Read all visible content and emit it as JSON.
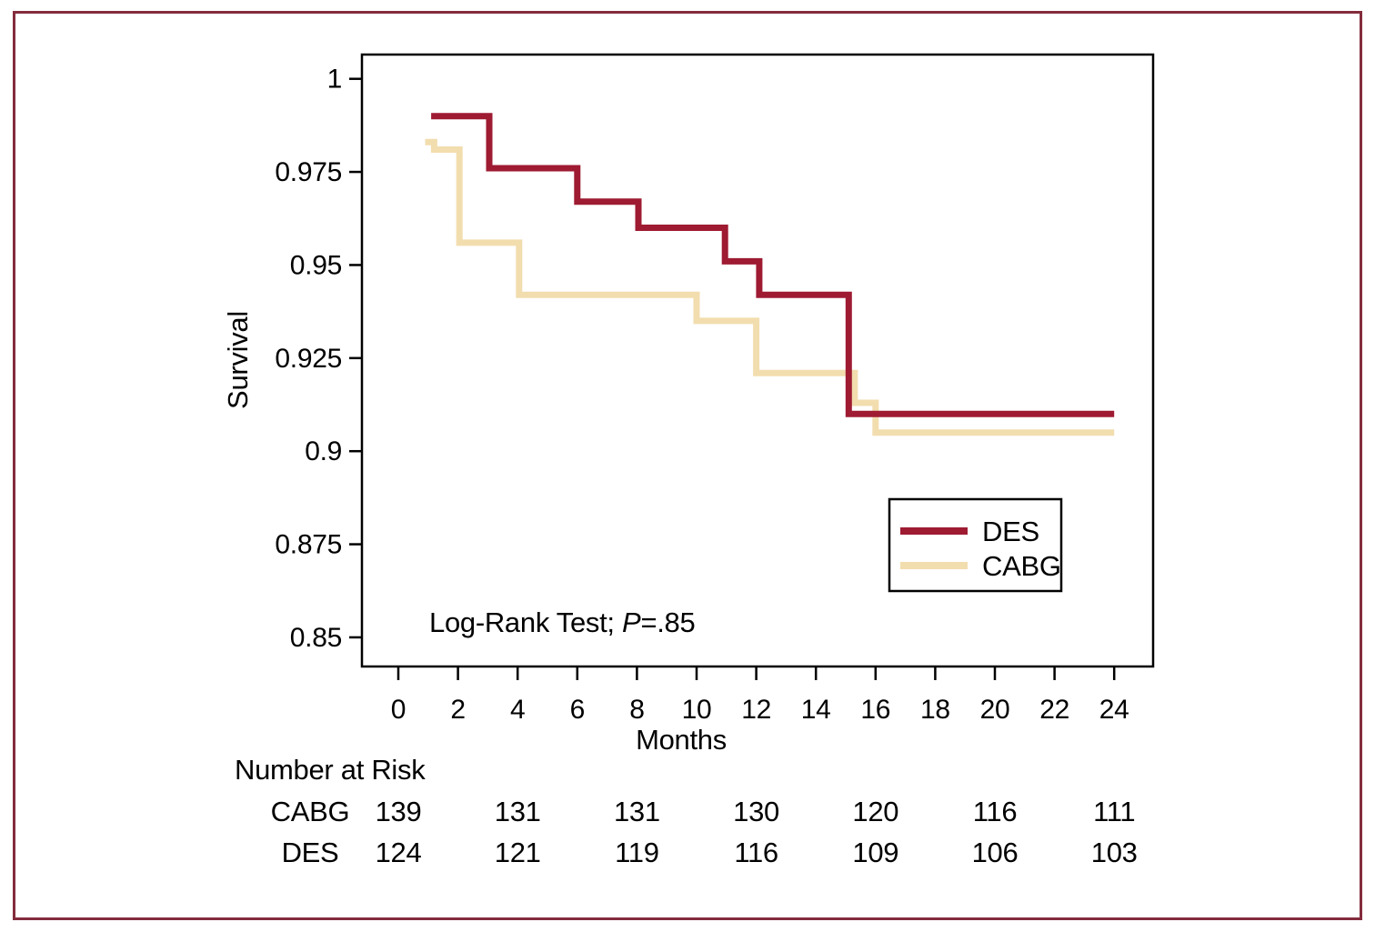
{
  "page": {
    "background": "#ffffff",
    "border_color": "#832c3d"
  },
  "chart_data": {
    "type": "line",
    "chart_kind": "kaplan-meier-step-curves",
    "title": "",
    "xlabel": "Months",
    "ylabel": "Survival",
    "grid": false,
    "x_axis": {
      "label": "Months",
      "ticks": [
        0,
        2,
        4,
        6,
        8,
        10,
        12,
        14,
        16,
        18,
        20,
        22,
        24
      ],
      "range": [
        -1.2,
        25.3
      ]
    },
    "y_axis": {
      "label": "Survival",
      "tick_labels": [
        "1",
        "0.975",
        "0.95",
        "0.925",
        "0.9",
        "0.875",
        "0.85"
      ],
      "tick_values": [
        1,
        0.975,
        0.95,
        0.925,
        0.9,
        0.875,
        0.85
      ],
      "range": [
        0.842,
        1.006
      ]
    },
    "series": [
      {
        "name": "CABG",
        "color": "#f2ddae",
        "points": [
          [
            0.9,
            0.983
          ],
          [
            1.2,
            0.983
          ],
          [
            1.2,
            0.981
          ],
          [
            2.05,
            0.981
          ],
          [
            2.05,
            0.956
          ],
          [
            4.05,
            0.956
          ],
          [
            4.05,
            0.942
          ],
          [
            10,
            0.942
          ],
          [
            10,
            0.935
          ],
          [
            12,
            0.935
          ],
          [
            12,
            0.921
          ],
          [
            15.3,
            0.921
          ],
          [
            15.3,
            0.913
          ],
          [
            16,
            0.913
          ],
          [
            16,
            0.905
          ],
          [
            24,
            0.905
          ]
        ]
      },
      {
        "name": "DES",
        "color": "#9e1b32",
        "points": [
          [
            1.1,
            0.99
          ],
          [
            3.05,
            0.99
          ],
          [
            3.05,
            0.976
          ],
          [
            6,
            0.976
          ],
          [
            6,
            0.967
          ],
          [
            8.05,
            0.967
          ],
          [
            8.05,
            0.96
          ],
          [
            10.95,
            0.96
          ],
          [
            10.95,
            0.951
          ],
          [
            12.1,
            0.951
          ],
          [
            12.1,
            0.942
          ],
          [
            15.1,
            0.942
          ],
          [
            15.1,
            0.91
          ],
          [
            24,
            0.91
          ]
        ]
      }
    ],
    "legend": {
      "position": "right-middle",
      "entries": [
        {
          "label": "DES",
          "color": "#9e1b32"
        },
        {
          "label": "CABG",
          "color": "#f2ddae"
        }
      ]
    },
    "annotation": {
      "text_prefix": "Log-Rank Test; ",
      "italic_part": "P",
      "text_suffix": "=.85"
    },
    "at_risk": {
      "title": "Number at Risk",
      "time_points": [
        0,
        4,
        8,
        12,
        16,
        20,
        24
      ],
      "rows": [
        {
          "label": "CABG",
          "values": [
            "139",
            "131",
            "131",
            "130",
            "120",
            "116",
            "111"
          ]
        },
        {
          "label": "DES",
          "values": [
            "124",
            "121",
            "119",
            "116",
            "109",
            "106",
            "103"
          ]
        }
      ]
    }
  }
}
